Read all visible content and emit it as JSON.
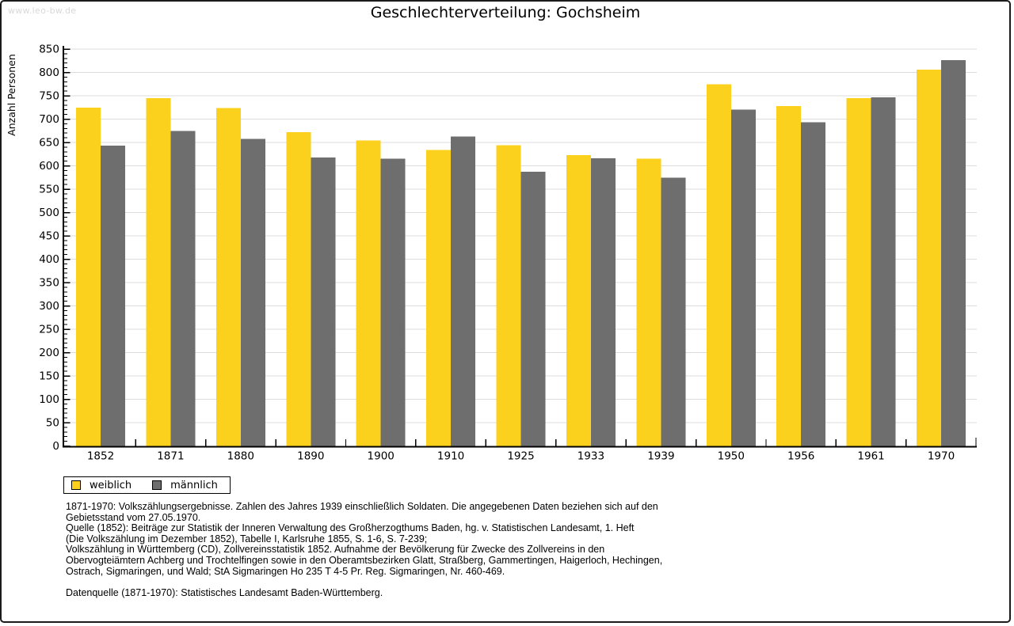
{
  "page": {
    "watermark": "www.leo-bw.de"
  },
  "chart_data": {
    "type": "bar",
    "title": "Geschlechterverteilung: Gochsheim",
    "ylabel": "Anzahl Personen",
    "xlabel": "",
    "categories": [
      "1852",
      "1871",
      "1880",
      "1890",
      "1900",
      "1910",
      "1925",
      "1933",
      "1939",
      "1950",
      "1956",
      "1961",
      "1970"
    ],
    "series": [
      {
        "name": "weiblich",
        "color": "#FCD11E",
        "values": [
          725,
          745,
          724,
          672,
          654,
          634,
          644,
          623,
          615,
          775,
          728,
          745,
          806
        ]
      },
      {
        "name": "männlich",
        "color": "#6E6E6E",
        "values": [
          643,
          675,
          658,
          618,
          615,
          663,
          587,
          616,
          575,
          720,
          693,
          747,
          826
        ]
      }
    ],
    "ylim": [
      0,
      850
    ],
    "ytick_major": 50,
    "ytick_minor": 10,
    "grid": true,
    "legend_position": "bottom-left"
  },
  "footer": {
    "lines": [
      "1871-1970: Volkszählungsergebnisse. Zahlen des Jahres 1939 einschließlich Soldaten. Die angegebenen Daten beziehen sich auf den",
      "Gebietsstand vom 27.05.1970.",
      "Quelle (1852): Beiträge zur Statistik der Inneren Verwaltung des Großherzogthums Baden, hg. v. Statistischen Landesamt, 1. Heft",
      "(Die Volkszählung im Dezember 1852), Tabelle I, Karlsruhe 1855, S. 1-6, S. 7-239;",
      "Volkszählung in Württemberg (CD), Zollvereinsstatistik 1852. Aufnahme der Bevölkerung für Zwecke des Zollvereins in den",
      "Obervogteiämtern Achberg und Trochtelfingen sowie in den Oberamtsbezirken Glatt, Straßberg, Gammertingen, Haigerloch, Hechingen,",
      "Ostrach, Sigmaringen, und Wald; StA Sigmaringen Ho 235 T 4-5 Pr. Reg. Sigmaringen, Nr. 460-469."
    ],
    "datasource": "Datenquelle (1871-1970): Statistisches Landesamt Baden-Württemberg."
  },
  "colors": {
    "grid": "#DCDCDC",
    "axis": "#000000",
    "watermark": "#D9D9D9"
  }
}
